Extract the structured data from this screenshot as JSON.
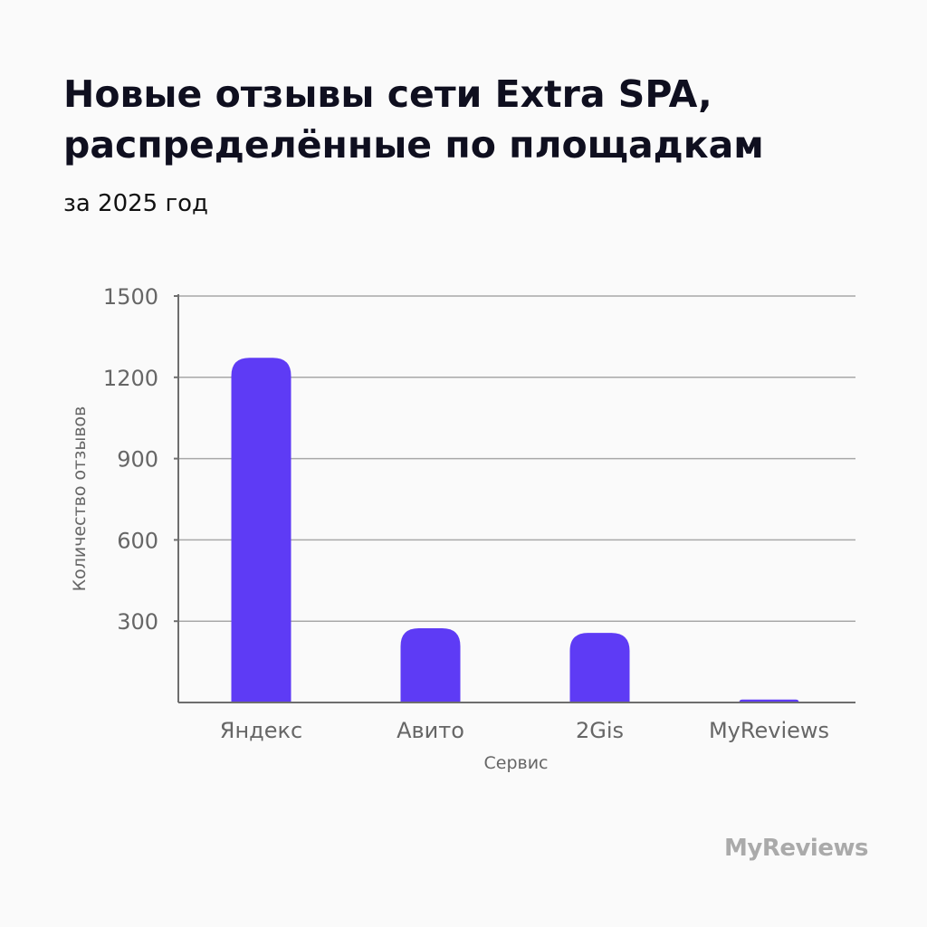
{
  "title": "Новые отзывы сети Extra SPA, распределённые по площадкам",
  "subtitle": "за 2025 год",
  "logo": "MyReviews",
  "colors": {
    "bar": "#5e3bf5",
    "grid": "#a8a8a8",
    "axis": "#6e6e6e",
    "text": "#666666"
  },
  "chart_data": {
    "type": "bar",
    "title": "Новые отзывы сети Extra SPA, распределённые по площадкам",
    "subtitle": "за 2025 год",
    "xlabel": "Сервис",
    "ylabel": "Количество отзывов",
    "categories": [
      "Яндекс",
      "Авито",
      "2Gis",
      "MyReviews"
    ],
    "values": [
      1272,
      274,
      257,
      11
    ],
    "ylim": [
      0,
      1500
    ],
    "yticks": [
      300,
      600,
      900,
      1200,
      1500
    ],
    "grid": true
  }
}
